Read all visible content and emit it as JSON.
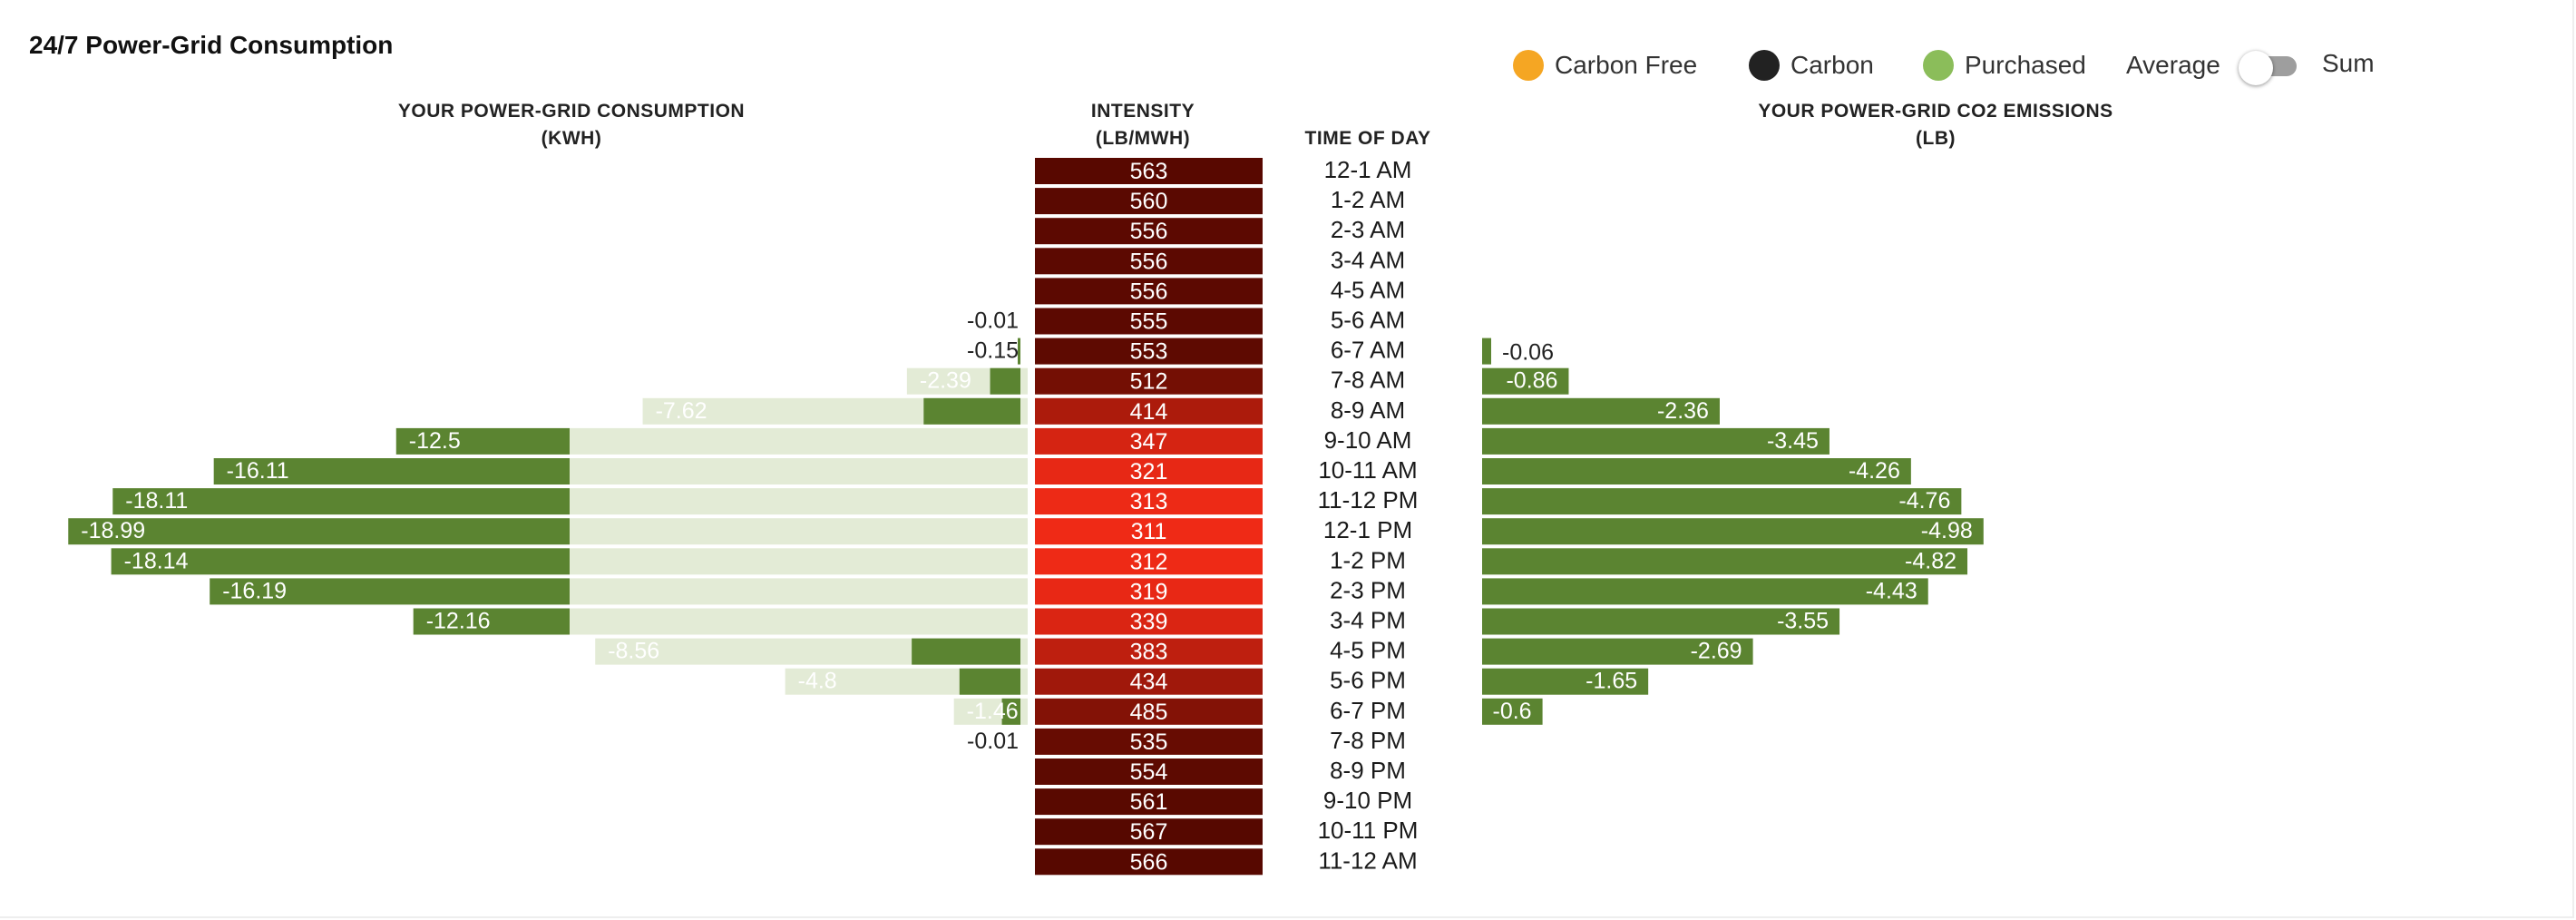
{
  "title": "24/7 Power-Grid Consumption",
  "legend": [
    {
      "label": "Carbon Free",
      "color": "#f5a623"
    },
    {
      "label": "Carbon",
      "color": "#222222"
    },
    {
      "label": "Purchased",
      "color": "#8bbd5a"
    }
  ],
  "toggle": {
    "left_label": "Average",
    "right_label": "Sum",
    "selected": "Average"
  },
  "colors": {
    "consumption_bar": "#5b8431",
    "consumption_track": "#e3ebd6",
    "emissions_bar": "#5b8431",
    "intensity_low": "#ef2a16",
    "intensity_high": "#560800"
  },
  "chart_data": [
    {
      "type": "bar",
      "id": "consumption",
      "title_line1": "YOUR POWER-GRID CONSUMPTION",
      "title_line2": "(KWH)",
      "categories": [
        "12-1 AM",
        "1-2 AM",
        "2-3 AM",
        "3-4 AM",
        "4-5 AM",
        "5-6 AM",
        "6-7 AM",
        "7-8 AM",
        "8-9 AM",
        "9-10 AM",
        "10-11 AM",
        "11-12 PM",
        "12-1 PM",
        "1-2 PM",
        "2-3 PM",
        "3-4 PM",
        "4-5 PM",
        "5-6 PM",
        "6-7 PM",
        "7-8 PM",
        "8-9 PM",
        "9-10 PM",
        "10-11 PM",
        "11-12 AM"
      ],
      "values": [
        null,
        null,
        null,
        null,
        null,
        -0.01,
        -0.15,
        -2.39,
        -7.62,
        -12.5,
        -16.11,
        -18.11,
        -18.99,
        -18.14,
        -16.19,
        -12.16,
        -8.56,
        -4.8,
        -1.46,
        -0.01,
        null,
        null,
        null,
        null
      ],
      "labels": [
        "",
        "",
        "",
        "",
        "",
        "-0.01",
        "-0.15",
        "-2.39",
        "-7.62",
        "-12.5",
        "-16.11",
        "-18.11",
        "-18.99",
        "-18.14",
        "-16.19",
        "-12.16",
        "-8.56",
        "-4.8",
        "-1.46",
        "-0.01",
        "",
        "",
        "",
        ""
      ],
      "series_name": "Purchased"
    },
    {
      "type": "table",
      "id": "intensity",
      "title_line1": "INTENSITY",
      "title_line2": "(LB/MWH)",
      "values": [
        563,
        560,
        556,
        556,
        556,
        555,
        553,
        512,
        414,
        347,
        321,
        313,
        311,
        312,
        319,
        339,
        383,
        434,
        485,
        535,
        554,
        561,
        567,
        566
      ]
    },
    {
      "type": "table",
      "id": "time_of_day",
      "title_line1": "TIME OF DAY",
      "values": [
        "12-1 AM",
        "1-2 AM",
        "2-3 AM",
        "3-4 AM",
        "4-5 AM",
        "5-6 AM",
        "6-7 AM",
        "7-8 AM",
        "8-9 AM",
        "9-10 AM",
        "10-11 AM",
        "11-12 PM",
        "12-1 PM",
        "1-2 PM",
        "2-3 PM",
        "3-4 PM",
        "4-5 PM",
        "5-6 PM",
        "6-7 PM",
        "7-8 PM",
        "8-9 PM",
        "9-10 PM",
        "10-11 PM",
        "11-12 AM"
      ]
    },
    {
      "type": "bar",
      "id": "emissions",
      "title_line1": "YOUR POWER-GRID CO2 EMISSIONS",
      "title_line2": "(LB)",
      "values": [
        null,
        null,
        null,
        null,
        null,
        null,
        -0.06,
        -0.86,
        -2.36,
        -3.45,
        -4.26,
        -4.76,
        -4.98,
        -4.82,
        -4.43,
        -3.55,
        -2.69,
        -1.65,
        -0.6,
        null,
        null,
        null,
        null,
        null
      ],
      "labels": [
        "",
        "",
        "",
        "",
        "",
        "",
        "-0.06",
        "-0.86",
        "-2.36",
        "-3.45",
        "-4.26",
        "-4.76",
        "-4.98",
        "-4.82",
        "-4.43",
        "-3.55",
        "-2.69",
        "-1.65",
        "-0.6",
        "",
        "",
        "",
        "",
        ""
      ]
    }
  ]
}
